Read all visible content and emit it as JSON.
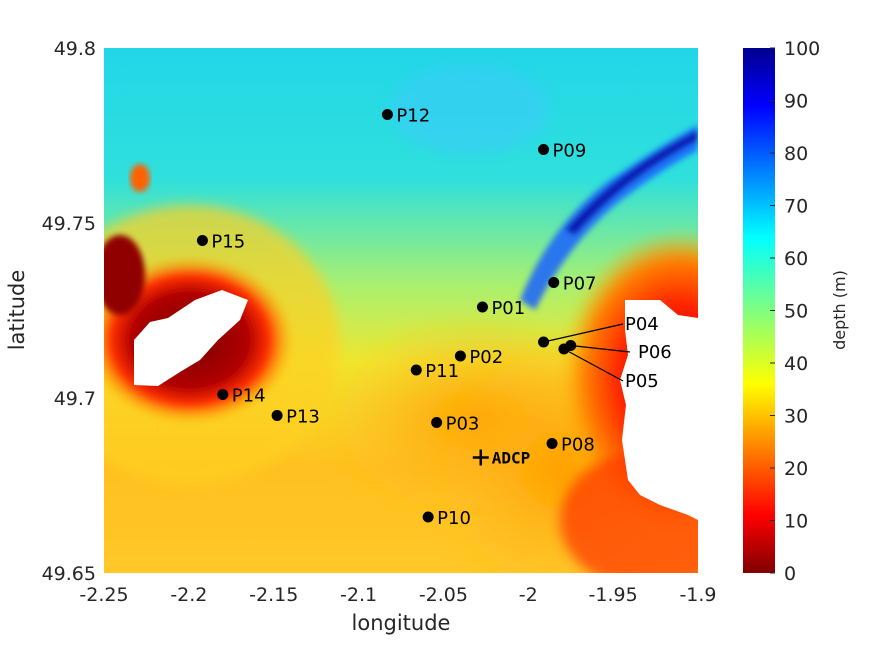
{
  "chart_data": {
    "type": "heatmap",
    "xlabel": "longitude",
    "ylabel": "latitude",
    "xlim": [
      -2.25,
      -1.9
    ],
    "ylim": [
      49.65,
      49.8
    ],
    "xticks": [
      -2.25,
      -2.2,
      -2.15,
      -2.1,
      -2.05,
      -2,
      -1.95,
      -1.9
    ],
    "xtick_labels": [
      "-2.25",
      "-2.2",
      "-2.15",
      "-2.1",
      "-2.05",
      "-2",
      "-1.95",
      "-1.9"
    ],
    "yticks": [
      49.65,
      49.7,
      49.75,
      49.8
    ],
    "ytick_labels": [
      "49.65",
      "49.7",
      "49.75",
      "49.8"
    ],
    "colorbar": {
      "label": "depth (m)",
      "range": [
        0,
        100
      ],
      "ticks": [
        0,
        10,
        20,
        30,
        40,
        50,
        60,
        70,
        80,
        90,
        100
      ],
      "tick_labels": [
        "0",
        "10",
        "20",
        "30",
        "40",
        "50",
        "60",
        "70",
        "80",
        "90",
        "100"
      ],
      "colormap": "jet"
    },
    "points": [
      {
        "name": "P01",
        "lon": -2.027,
        "lat": 49.726
      },
      {
        "name": "P02",
        "lon": -2.04,
        "lat": 49.712
      },
      {
        "name": "P03",
        "lon": -2.054,
        "lat": 49.693
      },
      {
        "name": "P04",
        "lon": -1.991,
        "lat": 49.716
      },
      {
        "name": "P05",
        "lon": -1.979,
        "lat": 49.714
      },
      {
        "name": "P06",
        "lon": -1.975,
        "lat": 49.715
      },
      {
        "name": "P07",
        "lon": -1.985,
        "lat": 49.733
      },
      {
        "name": "P08",
        "lon": -1.986,
        "lat": 49.687
      },
      {
        "name": "P09",
        "lon": -1.991,
        "lat": 49.771
      },
      {
        "name": "P10",
        "lon": -2.059,
        "lat": 49.666
      },
      {
        "name": "P11",
        "lon": -2.066,
        "lat": 49.708
      },
      {
        "name": "P12",
        "lon": -2.083,
        "lat": 49.781
      },
      {
        "name": "P13",
        "lon": -2.148,
        "lat": 49.695
      },
      {
        "name": "P14",
        "lon": -2.18,
        "lat": 49.701
      },
      {
        "name": "P15",
        "lon": -2.192,
        "lat": 49.745
      }
    ],
    "adcp": {
      "name": "ADCP",
      "lon": -2.028,
      "lat": 49.683
    },
    "colors": {
      "marker": "#000000",
      "land": "#ffffff",
      "text": "#262626"
    }
  }
}
